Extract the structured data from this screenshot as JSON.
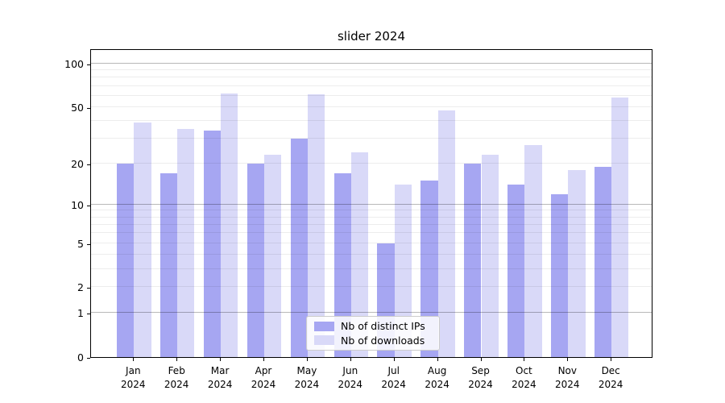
{
  "chart_data": {
    "type": "bar",
    "title": "slider 2024",
    "categories": [
      "Jan",
      "Feb",
      "Mar",
      "Apr",
      "May",
      "Jun",
      "Jul",
      "Aug",
      "Sep",
      "Oct",
      "Nov",
      "Dec"
    ],
    "year_label": "2024",
    "series": [
      {
        "name": "Nb of distinct IPs",
        "color": "#a6a6f2",
        "values": [
          20,
          17,
          34,
          20,
          30,
          17,
          5,
          15,
          20,
          14,
          12,
          19
        ]
      },
      {
        "name": "Nb of downloads",
        "color": "#d9d9f8",
        "values": [
          39,
          35,
          62,
          23,
          61,
          24,
          14,
          47,
          23,
          27,
          18,
          58
        ]
      }
    ],
    "y_axis": {
      "scale": "log10(value+1)",
      "tick_values": [
        0,
        1,
        2,
        5,
        10,
        20,
        50,
        100
      ],
      "tick_labels": [
        "0",
        "1",
        "2",
        "5",
        "10",
        "20",
        "50",
        "100"
      ],
      "top_value": 127,
      "major_grid": [
        1,
        10,
        100
      ],
      "minor_grid": [
        2,
        3,
        4,
        5,
        6,
        7,
        8,
        9,
        20,
        30,
        40,
        50,
        60,
        70,
        80,
        90
      ]
    },
    "legend": {
      "position": "lower center",
      "entries": [
        "Nb of distinct IPs",
        "Nb of downloads"
      ]
    },
    "xlabel": "",
    "ylabel": "",
    "grid": true
  }
}
